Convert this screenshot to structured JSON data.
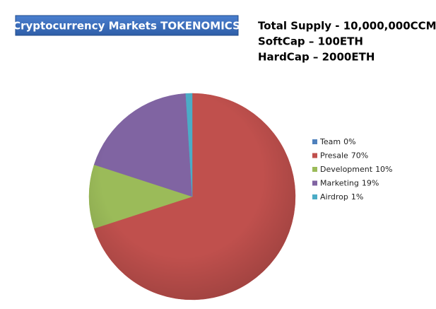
{
  "chart_data": {
    "type": "pie",
    "title": "Cryptocurrency Markets TOKENOMICS",
    "annotations": [
      "Total Supply - 10,000,000CCM",
      "SoftCap – 100ETH",
      "HardCap – 2000ETH"
    ],
    "categories": [
      "Team",
      "Presale",
      "Development",
      "Marketing",
      "Airdrop"
    ],
    "values": [
      0,
      70,
      10,
      19,
      1
    ],
    "value_labels": [
      "0%",
      "70%",
      "10%",
      "19%",
      "1%"
    ],
    "colors": [
      "#4f81bd",
      "#c0504d",
      "#9bbb59",
      "#8064a2",
      "#4bacc6"
    ],
    "legend": "right"
  }
}
